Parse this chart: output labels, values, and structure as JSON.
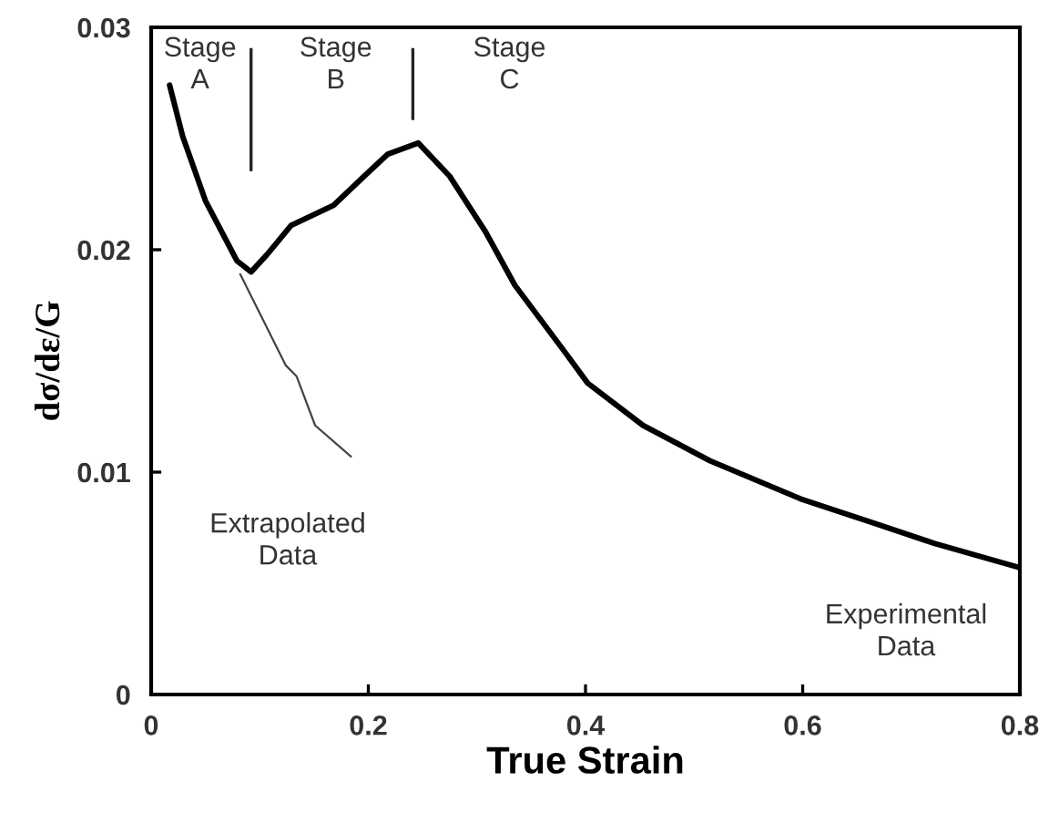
{
  "chart_data": {
    "type": "line",
    "xlabel": "True Strain",
    "ylabel": "dσ/dε/G",
    "xlim": [
      0,
      0.8
    ],
    "ylim": [
      0,
      0.03
    ],
    "xticks": [
      0,
      0.2,
      0.4,
      0.6,
      0.8
    ],
    "yticks": [
      0,
      0.01,
      0.02,
      0.03
    ],
    "grid": false,
    "legend": false,
    "marker": "none",
    "line_style": "solid",
    "series": [
      {
        "name": "Experimental Data",
        "color": "#000000",
        "x": [
          0.017,
          0.029,
          0.05,
          0.079,
          0.092,
          0.107,
          0.129,
          0.168,
          0.196,
          0.218,
          0.246,
          0.275,
          0.308,
          0.335,
          0.381,
          0.402,
          0.453,
          0.515,
          0.598,
          0.666,
          0.721,
          0.8
        ],
        "values": [
          0.0274,
          0.0251,
          0.0222,
          0.0195,
          0.019,
          0.0198,
          0.0211,
          0.022,
          0.0233,
          0.0243,
          0.0248,
          0.0233,
          0.0208,
          0.0184,
          0.0154,
          0.014,
          0.0121,
          0.0105,
          0.0088,
          0.0077,
          0.0068,
          0.0057
        ]
      },
      {
        "name": "Extrapolated Data",
        "color": "#444444",
        "x": [
          0.082,
          0.124,
          0.134,
          0.151,
          0.184
        ],
        "values": [
          0.0189,
          0.0148,
          0.0143,
          0.0121,
          0.0107
        ]
      }
    ],
    "ref_lines": [
      {
        "axis": "x",
        "value": 0.092
      },
      {
        "axis": "x",
        "value": 0.241
      }
    ],
    "annotations": [
      "Stage\nA",
      "Stage\nB",
      "Stage\nC"
    ]
  }
}
